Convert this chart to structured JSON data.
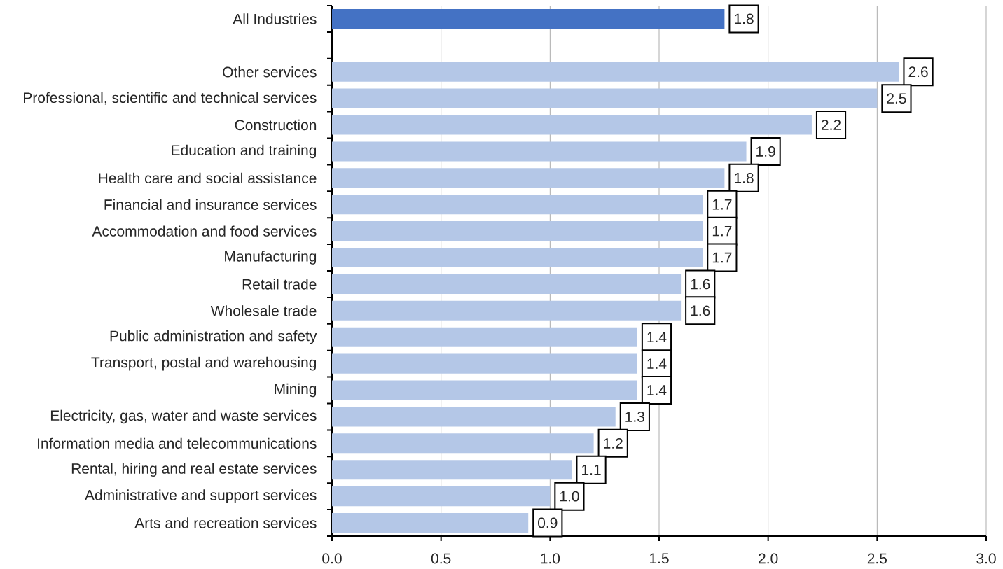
{
  "chart_data": {
    "type": "bar",
    "orientation": "horizontal",
    "categories": [
      "All Industries",
      null,
      "Other services",
      "Professional, scientific and technical services",
      "Construction",
      "Education and training",
      "Health care and social assistance",
      "Financial and insurance services",
      "Accommodation and food services",
      "Manufacturing",
      "Retail trade",
      "Wholesale trade",
      "Public administration and safety",
      "Transport, postal and warehousing",
      "Mining",
      "Electricity, gas, water and waste services",
      "Information media and telecommunications",
      "Rental, hiring and real estate services",
      "Administrative and support services",
      "Arts and recreation services"
    ],
    "values": [
      1.8,
      null,
      2.6,
      2.5,
      2.2,
      1.9,
      1.8,
      1.7,
      1.7,
      1.7,
      1.6,
      1.6,
      1.4,
      1.4,
      1.4,
      1.3,
      1.2,
      1.1,
      1.0,
      0.9
    ],
    "colors": [
      "#4472c4",
      null,
      "#b4c7e7",
      "#b4c7e7",
      "#b4c7e7",
      "#b4c7e7",
      "#b4c7e7",
      "#b4c7e7",
      "#b4c7e7",
      "#b4c7e7",
      "#b4c7e7",
      "#b4c7e7",
      "#b4c7e7",
      "#b4c7e7",
      "#b4c7e7",
      "#b4c7e7",
      "#b4c7e7",
      "#b4c7e7",
      "#b4c7e7",
      "#b4c7e7"
    ],
    "value_labels": [
      "1.8",
      null,
      "2.6",
      "2.5",
      "2.2",
      "1.9",
      "1.8",
      "1.7",
      "1.7",
      "1.7",
      "1.6",
      "1.6",
      "1.4",
      "1.4",
      "1.4",
      "1.3",
      "1.2",
      "1.1",
      "1.0",
      "0.9"
    ],
    "xlim": [
      0,
      3
    ],
    "xticks": [
      {
        "value": 0,
        "label": "0.0"
      },
      {
        "value": 0.5,
        "label": "0.5"
      },
      {
        "value": 1,
        "label": "1.0"
      },
      {
        "value": 1.5,
        "label": "1.5"
      },
      {
        "value": 2,
        "label": "2.0"
      },
      {
        "value": 2.5,
        "label": "2.5"
      },
      {
        "value": 3,
        "label": "3.0"
      }
    ],
    "grid": "x"
  }
}
